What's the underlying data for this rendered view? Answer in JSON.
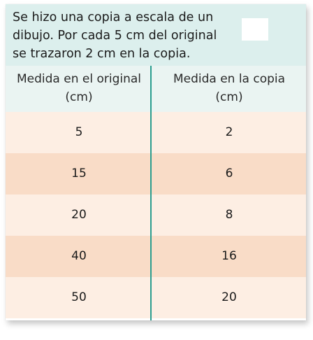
{
  "statement": {
    "lines": [
      "Se hizo una copia a escala de un",
      "dibujo. Por cada 5 cm del original",
      "se trazaron 2 cm en la copia."
    ]
  },
  "table": {
    "headers": {
      "original": [
        "Medida en el original",
        "(cm)"
      ],
      "copy": [
        "Medida en la copia",
        "(cm)"
      ]
    },
    "rows": [
      {
        "original": "5",
        "copy": "2"
      },
      {
        "original": "15",
        "copy": "6"
      },
      {
        "original": "20",
        "copy": "8"
      },
      {
        "original": "40",
        "copy": "16"
      },
      {
        "original": "50",
        "copy": "20"
      }
    ]
  },
  "colors": {
    "statement_bg": "#dcefed",
    "header_bg": "#eaf4f2",
    "row_light": "#fdeee3",
    "row_dark": "#f9dcc7",
    "divider": "#2a9d8f"
  }
}
